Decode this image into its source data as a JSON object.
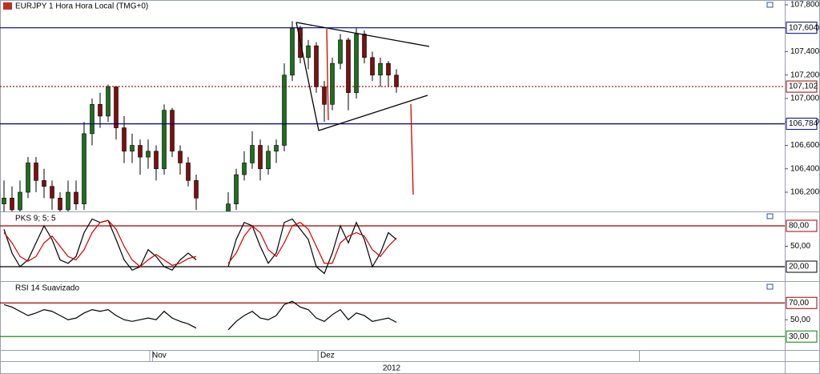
{
  "chart_data": {
    "type": "candlestick",
    "title": "EURJPY 1 Hora Hora Local (TMG+0)",
    "categories": [
      null,
      null,
      null,
      null,
      null,
      null,
      null,
      null,
      null,
      null,
      null,
      null,
      null,
      null,
      null,
      null,
      null,
      null,
      null,
      "Nov",
      null,
      null,
      null,
      null,
      null,
      null,
      null,
      null,
      null,
      null,
      null,
      null,
      null,
      null,
      null,
      null,
      null,
      null,
      null,
      null,
      "Dez",
      null,
      null,
      null,
      null,
      null,
      null,
      null,
      null,
      null
    ],
    "year_label": "2012",
    "ohlc": [
      [
        106.1,
        106.3,
        106.0,
        106.15
      ],
      [
        106.15,
        106.25,
        105.95,
        106.05
      ],
      [
        106.05,
        106.3,
        106.0,
        106.2
      ],
      [
        106.2,
        106.5,
        106.15,
        106.45
      ],
      [
        106.45,
        106.5,
        106.2,
        106.3
      ],
      [
        106.3,
        106.4,
        106.15,
        106.25
      ],
      [
        106.25,
        106.3,
        106.05,
        106.15
      ],
      [
        106.15,
        106.2,
        105.95,
        106.05
      ],
      [
        106.05,
        106.3,
        106.0,
        106.2
      ],
      [
        106.2,
        106.3,
        106.05,
        106.1
      ],
      [
        106.1,
        106.8,
        106.05,
        106.7
      ],
      [
        106.7,
        107.0,
        106.6,
        106.95
      ],
      [
        106.95,
        107.05,
        106.75,
        106.85
      ],
      [
        106.85,
        107.12,
        106.8,
        107.1
      ],
      [
        107.1,
        107.1,
        106.65,
        106.75
      ],
      [
        106.75,
        106.85,
        106.45,
        106.55
      ],
      [
        106.55,
        106.7,
        106.45,
        106.6
      ],
      [
        106.6,
        106.65,
        106.35,
        106.5
      ],
      [
        106.5,
        106.65,
        106.4,
        106.55
      ],
      [
        106.55,
        106.6,
        106.3,
        106.4
      ],
      [
        106.4,
        106.95,
        106.35,
        106.9
      ],
      [
        106.9,
        106.92,
        106.5,
        106.55
      ],
      [
        106.55,
        106.6,
        106.35,
        106.45
      ],
      [
        106.45,
        106.5,
        106.25,
        106.3
      ],
      [
        106.3,
        106.35,
        106.05,
        106.15
      ],
      null,
      null,
      null,
      [
        106.0,
        106.2,
        105.95,
        106.1
      ],
      [
        106.1,
        106.4,
        106.05,
        106.35
      ],
      [
        106.35,
        106.55,
        106.3,
        106.45
      ],
      [
        106.45,
        106.72,
        106.4,
        106.6
      ],
      [
        106.6,
        106.65,
        106.3,
        106.4
      ],
      [
        106.4,
        106.6,
        106.35,
        106.55
      ],
      [
        106.55,
        106.65,
        106.45,
        106.6
      ],
      [
        106.6,
        107.3,
        106.55,
        107.2
      ],
      [
        107.2,
        107.66,
        107.15,
        107.6
      ],
      [
        107.6,
        107.62,
        107.3,
        107.35
      ],
      [
        107.35,
        107.5,
        107.25,
        107.45
      ],
      [
        107.45,
        107.48,
        107.05,
        107.1
      ],
      [
        107.1,
        107.15,
        106.8,
        106.95
      ],
      [
        106.95,
        107.35,
        106.9,
        107.3
      ],
      [
        107.3,
        107.55,
        107.25,
        107.5
      ],
      [
        107.5,
        107.52,
        106.9,
        107.05
      ],
      [
        107.05,
        107.6,
        107.0,
        107.55
      ],
      [
        107.55,
        107.58,
        107.3,
        107.35
      ],
      [
        107.35,
        107.4,
        107.15,
        107.2
      ],
      [
        107.2,
        107.35,
        107.1,
        107.3
      ],
      [
        107.3,
        107.32,
        107.1,
        107.2
      ],
      [
        107.2,
        107.25,
        107.05,
        107.1
      ]
    ],
    "up_color": "#1e6e1e",
    "down_color": "#7a1010",
    "ylim": [
      106.036,
      107.841
    ],
    "yticks": [
      {
        "value": 106.2,
        "label": "106,200"
      },
      {
        "value": 106.4,
        "label": "106,400"
      },
      {
        "value": 106.6,
        "label": "106,600"
      },
      {
        "value": 106.8,
        "label": "106,800"
      },
      {
        "value": 107.0,
        "label": "107,000"
      },
      {
        "value": 107.2,
        "label": "107,200"
      },
      {
        "value": 107.4,
        "label": "107,400"
      },
      {
        "value": 107.6,
        "label": "107,600"
      },
      {
        "value": 107.8,
        "label": "107,800"
      }
    ],
    "levels": [
      {
        "value": 107.604,
        "label": "107,604",
        "color": "#000080",
        "text_color": "#c04000"
      },
      {
        "value": 106.784,
        "label": "106,784",
        "color": "#000080",
        "text_color": "#c04000"
      },
      {
        "value": 107.102,
        "label": "107,102",
        "color": "#a00000",
        "text_color": "#008000",
        "dotted": true
      }
    ],
    "panels": [
      {
        "type": "line",
        "title": "PKS 9; 5; 5",
        "ylim": [
          0,
          100
        ],
        "yticks": [
          {
            "value": 50,
            "label": "50,00"
          }
        ],
        "levels": [
          {
            "value": 80,
            "label": "80,00",
            "color": "#a00000"
          },
          {
            "value": 20,
            "label": "20,00",
            "color": "#000000"
          }
        ],
        "series": [
          {
            "color": "#000000",
            "values": [
              75,
              40,
              20,
              30,
              55,
              80,
              60,
              30,
              25,
              35,
              70,
              90,
              85,
              88,
              60,
              30,
              15,
              20,
              45,
              35,
              20,
              15,
              30,
              40,
              30,
              null,
              null,
              null,
              20,
              60,
              85,
              80,
              50,
              25,
              40,
              85,
              90,
              75,
              60,
              20,
              10,
              40,
              80,
              55,
              85,
              60,
              20,
              40,
              70,
              60
            ]
          },
          {
            "color": "#d00000",
            "values": [
              70,
              55,
              35,
              28,
              35,
              55,
              65,
              50,
              35,
              30,
              45,
              70,
              85,
              88,
              75,
              50,
              30,
              20,
              30,
              38,
              30,
              22,
              25,
              32,
              35,
              null,
              null,
              null,
              25,
              40,
              65,
              80,
              70,
              45,
              35,
              55,
              80,
              85,
              75,
              50,
              25,
              25,
              55,
              65,
              70,
              65,
              45,
              35,
              50,
              62
            ]
          }
        ]
      },
      {
        "type": "line",
        "title": "RSI 14 Suavizado",
        "ylim": [
          14,
          95
        ],
        "yticks": [
          {
            "value": 50,
            "label": "50,00"
          }
        ],
        "levels": [
          {
            "value": 70,
            "label": "70,00",
            "color": "#a00000"
          },
          {
            "value": 30,
            "label": "30,00",
            "color": "#008000"
          }
        ],
        "series": [
          {
            "color": "#000000",
            "values": [
              68,
              65,
              60,
              55,
              58,
              62,
              60,
              55,
              50,
              52,
              58,
              62,
              60,
              62,
              55,
              50,
              48,
              50,
              52,
              50,
              60,
              52,
              48,
              45,
              40,
              null,
              null,
              null,
              38,
              48,
              55,
              60,
              52,
              50,
              55,
              68,
              72,
              65,
              62,
              52,
              48,
              56,
              62,
              50,
              58,
              55,
              48,
              50,
              52,
              47
            ]
          }
        ]
      }
    ]
  }
}
